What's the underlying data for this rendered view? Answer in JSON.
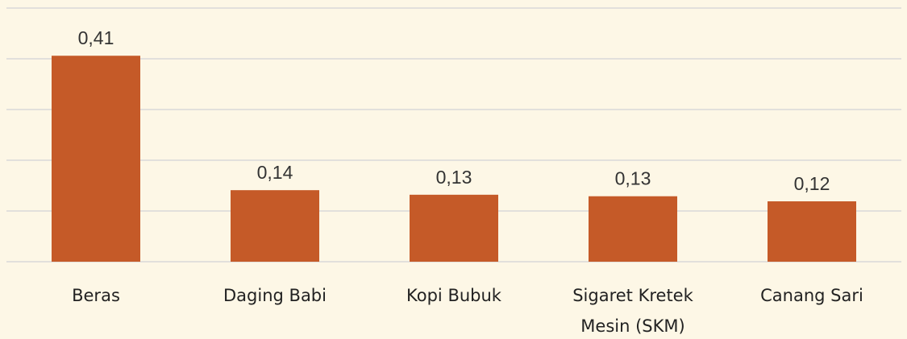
{
  "chart_data": {
    "type": "bar",
    "categories": [
      "Beras",
      "Daging Babi",
      "Kopi Bubuk",
      "Sigaret Kretek Mesin (SKM)",
      "Canang Sari"
    ],
    "values": [
      0.406,
      0.141,
      0.132,
      0.129,
      0.119
    ],
    "value_labels": [
      "0,41",
      "0,14",
      "0,13",
      "0,13",
      "0,12"
    ],
    "color": "#c55a28",
    "ylim": [
      0,
      0.5
    ],
    "yticks": [
      0,
      0.1,
      0.2,
      0.3,
      0.4,
      0.5
    ],
    "grid": true
  }
}
